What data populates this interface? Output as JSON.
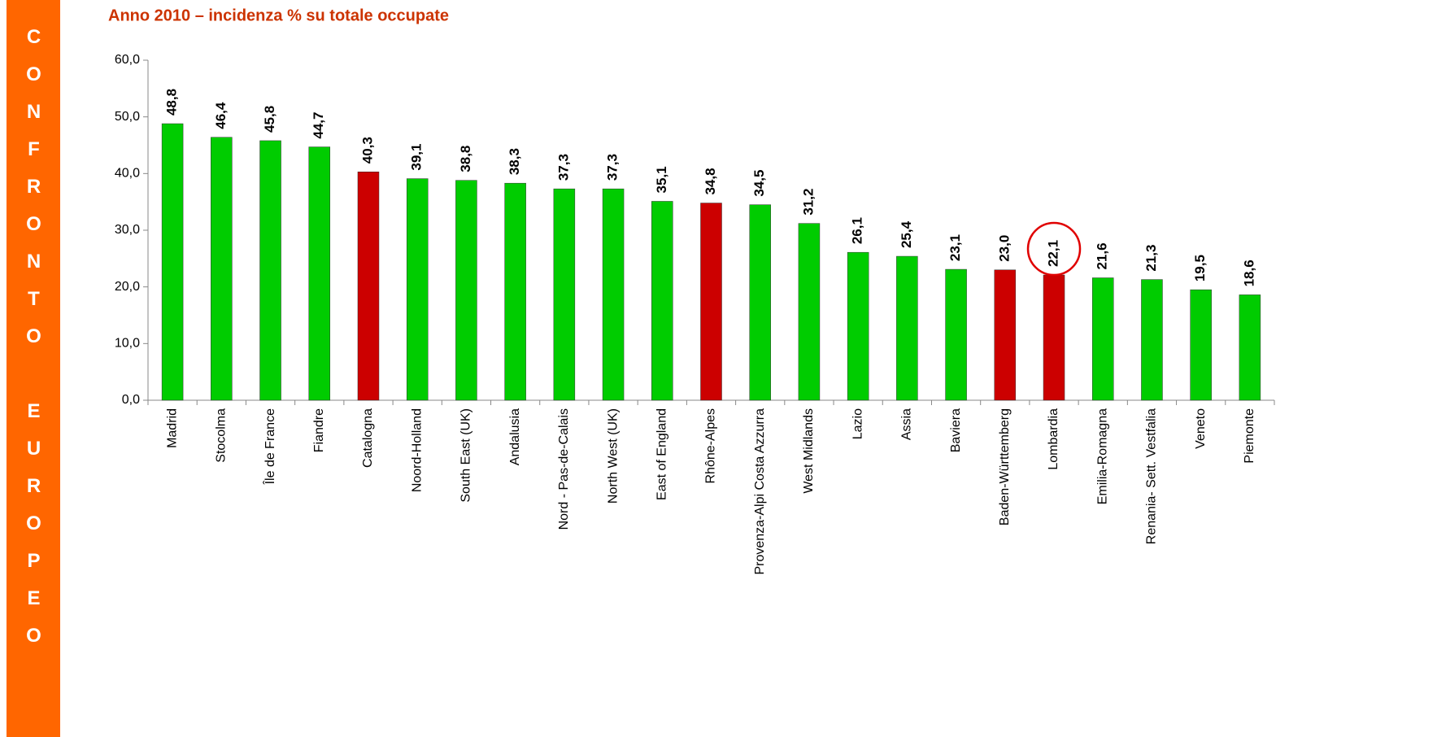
{
  "sidebar": "CONFRONTO EUROPEO",
  "chart_data": {
    "type": "bar",
    "title": "Anno 2010 – incidenza %  su totale occupate",
    "categories": [
      "Madrid",
      "Stocolma",
      "Île de France",
      "Fiandre",
      "Catalogna",
      "Noord-Holland",
      "South East (UK)",
      "Andalusia",
      "Nord - Pas-de-Calais",
      "North West (UK)",
      "East of England",
      "Rhône-Alpes",
      "Provenza-Alpi Costa Azzurra",
      "West Midlands",
      "Lazio",
      "Assia",
      "Baviera",
      "Baden-Württemberg",
      "Lombardia",
      "Emilia-Romagna",
      "Renania- Sett. Vestfalia",
      "Veneto",
      "Piemonte"
    ],
    "values": [
      48.8,
      46.4,
      45.8,
      44.7,
      40.3,
      39.1,
      38.8,
      38.3,
      37.3,
      37.3,
      35.1,
      34.8,
      34.5,
      31.2,
      26.1,
      25.4,
      23.1,
      23.0,
      22.1,
      21.6,
      21.3,
      19.5,
      18.6
    ],
    "value_labels": [
      "48,8",
      "46,4",
      "45,8",
      "44,7",
      "40,3",
      "39,1",
      "38,8",
      "38,3",
      "37,3",
      "37,3",
      "35,1",
      "34,8",
      "34,5",
      "31,2",
      "26,1",
      "25,4",
      "23,1",
      "23,0",
      "22,1",
      "21,6",
      "21,3",
      "19,5",
      "18,6"
    ],
    "colors": [
      "#00cc00",
      "#00cc00",
      "#00cc00",
      "#00cc00",
      "#cc0000",
      "#00cc00",
      "#00cc00",
      "#00cc00",
      "#00cc00",
      "#00cc00",
      "#00cc00",
      "#cc0000",
      "#00cc00",
      "#00cc00",
      "#00cc00",
      "#00cc00",
      "#00cc00",
      "#cc0000",
      "#cc0000",
      "#00cc00",
      "#00cc00",
      "#00cc00",
      "#00cc00"
    ],
    "highlight": "Lombardia",
    "ylim": [
      0,
      60
    ],
    "yticks": [
      {
        "value": 0,
        "label": "0,0"
      },
      {
        "value": 10,
        "label": "10,0"
      },
      {
        "value": 20,
        "label": "20,0"
      },
      {
        "value": 30,
        "label": "30,0"
      },
      {
        "value": 40,
        "label": "40,0"
      },
      {
        "value": 50,
        "label": "50,0"
      },
      {
        "value": 60,
        "label": "60,0"
      }
    ],
    "grid": false
  }
}
